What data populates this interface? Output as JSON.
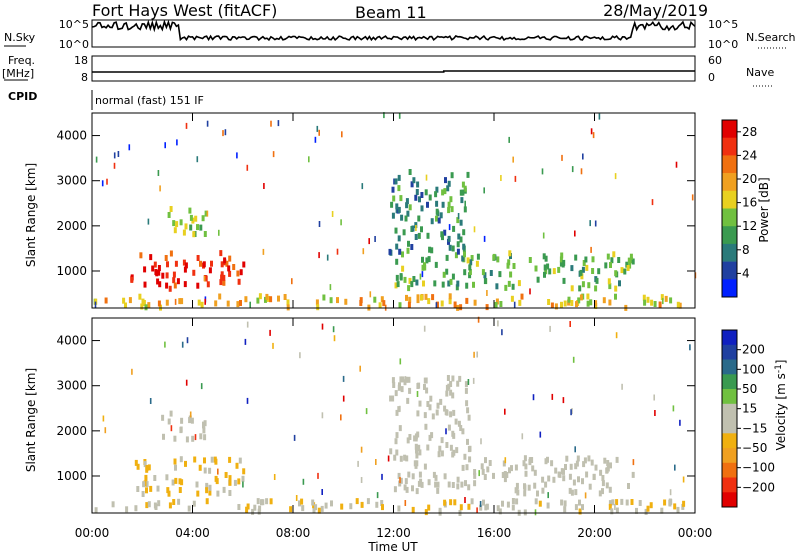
{
  "header": {
    "station": "Fort Hays West (fitACF)",
    "beam": "Beam 11",
    "date": "28/May/2019"
  },
  "top_panel": {
    "left_label": "N.Sky",
    "right_label": "N.Search",
    "left_ticks": [
      "10^5",
      "10^0"
    ],
    "right_ticks": [
      "10^5",
      "10^0"
    ]
  },
  "freq_panel": {
    "left_label_1": "Freq.",
    "left_label_2": "[MHz]",
    "right_label": "Nave",
    "left_ticks": [
      "18",
      "8"
    ],
    "right_ticks": [
      "60",
      "0"
    ]
  },
  "cpid": {
    "label": "CPID",
    "mode": "normal (fast) 151 IF"
  },
  "chart_data": [
    {
      "type": "heatmap",
      "name": "power",
      "ylabel": "Slant Range [km]",
      "ylim": [
        180,
        4500
      ],
      "yticks": [
        "1000",
        "2000",
        "3000",
        "4000"
      ],
      "xlabel": "",
      "xticks": [
        "00:00",
        "04:00",
        "08:00",
        "12:00",
        "16:00",
        "20:00",
        "00:00"
      ],
      "colorbar": {
        "label": "Power [dB]",
        "ticks": [
          "4",
          "8",
          "12",
          "16",
          "20",
          "24",
          "28"
        ],
        "range": [
          0,
          30
        ],
        "colors": [
          "#0020ff",
          "#2040a0",
          "#2a7a7a",
          "#3a9a50",
          "#70c040",
          "#e8d020",
          "#f0a020",
          "#f07010",
          "#f03010",
          "#e00000"
        ]
      },
      "regions": [
        {
          "t_start": 1.5,
          "t_end": 6.0,
          "range_min": 600,
          "range_max": 1400,
          "value": 26
        },
        {
          "t_start": 2.5,
          "t_end": 4.5,
          "range_min": 1800,
          "range_max": 2400,
          "value": 14
        },
        {
          "t_start": 12.0,
          "t_end": 21.5,
          "range_min": 600,
          "range_max": 1400,
          "value": 12
        },
        {
          "t_start": 11.8,
          "t_end": 15.0,
          "range_min": 1400,
          "range_max": 3200,
          "value": 9
        },
        {
          "t_start": 0.0,
          "t_end": 24.0,
          "range_min": 180,
          "range_max": 450,
          "value": 18
        }
      ]
    },
    {
      "type": "heatmap",
      "name": "velocity",
      "ylabel": "Slant Range [km]",
      "ylim": [
        180,
        4500
      ],
      "yticks": [
        "1000",
        "2000",
        "3000",
        "4000"
      ],
      "xlabel": "Time UT",
      "xticks": [
        "00:00",
        "04:00",
        "08:00",
        "12:00",
        "16:00",
        "20:00",
        "00:00"
      ],
      "colorbar": {
        "label": "Velocity [m s^-1]",
        "ticks": [
          "200",
          "100",
          "50",
          "15",
          "−15",
          "−50",
          "−100",
          "−200"
        ],
        "range": [
          -250,
          250
        ],
        "colors": [
          "#e00000",
          "#f03010",
          "#f07010",
          "#f0a020",
          "#f0b010",
          "#c0c0b0",
          "#c0c0b0",
          "#70c040",
          "#3a9a50",
          "#2a6a8a",
          "#2040a0",
          "#1020c0"
        ]
      },
      "regions": [
        {
          "t_start": 1.5,
          "t_end": 6.0,
          "range_min": 600,
          "range_max": 1400,
          "value": -40
        },
        {
          "t_start": 2.5,
          "t_end": 4.5,
          "range_min": 1800,
          "range_max": 2400,
          "value": 0
        },
        {
          "t_start": 12.0,
          "t_end": 21.5,
          "range_min": 600,
          "range_max": 1400,
          "value": 0
        },
        {
          "t_start": 11.8,
          "t_end": 15.0,
          "range_min": 1400,
          "range_max": 3200,
          "value": 0
        },
        {
          "t_start": 0.0,
          "t_end": 24.0,
          "range_min": 180,
          "range_max": 450,
          "value": -30
        }
      ]
    }
  ]
}
